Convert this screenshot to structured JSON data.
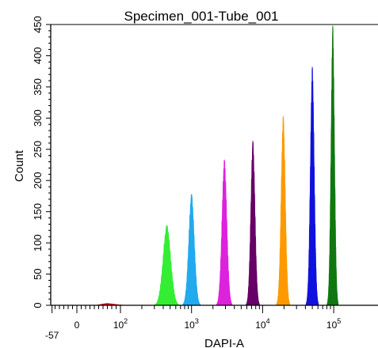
{
  "chart_data": {
    "type": "histogram",
    "title": "Specimen_001-Tube_001",
    "xlabel": "DAPI-A",
    "ylabel": "Count",
    "x_scale": "biexponential",
    "ylim": [
      0,
      450
    ],
    "y_ticks": [
      0,
      50,
      100,
      150,
      200,
      250,
      300,
      350,
      400,
      450
    ],
    "y_tick_labels": [
      "0",
      "50",
      "100",
      "150",
      "200",
      "250",
      "300",
      "350",
      "400",
      "450"
    ],
    "x_tick_labels": [
      {
        "value": -57,
        "label": "-57"
      },
      {
        "value": 0,
        "label": "0"
      },
      {
        "value": 100,
        "label": "10",
        "exp": "2"
      },
      {
        "value": 1000,
        "label": "10",
        "exp": "3"
      },
      {
        "value": 10000,
        "label": "10",
        "exp": "4"
      },
      {
        "value": 100000,
        "label": "10",
        "exp": "5"
      }
    ],
    "grid": false,
    "series": [
      {
        "color": "#e00000",
        "peak_x": 70,
        "peak_count": 3,
        "width": 0.09
      },
      {
        "color": "#33ee33",
        "peak_x": 450,
        "peak_count": 128,
        "width": 0.055
      },
      {
        "color": "#22aaee",
        "peak_x": 1000,
        "peak_count": 178,
        "width": 0.04
      },
      {
        "color": "#dd22dd",
        "peak_x": 2900,
        "peak_count": 233,
        "width": 0.035
      },
      {
        "color": "#660066",
        "peak_x": 7300,
        "peak_count": 263,
        "width": 0.03
      },
      {
        "color": "#ff9900",
        "peak_x": 19500,
        "peak_count": 303,
        "width": 0.03
      },
      {
        "color": "#1111dd",
        "peak_x": 50000,
        "peak_count": 382,
        "width": 0.028
      },
      {
        "color": "#117711",
        "peak_x": 97000,
        "peak_count": 448,
        "width": 0.025
      }
    ]
  }
}
